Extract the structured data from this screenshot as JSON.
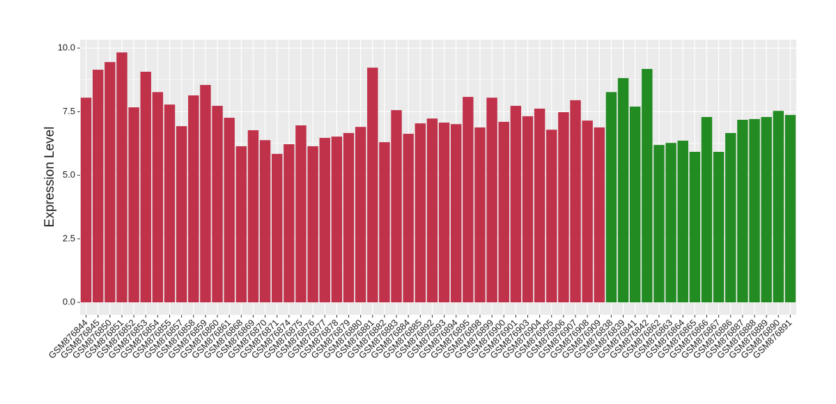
{
  "chart_data": {
    "type": "bar",
    "y_label": "Expression Level",
    "categories": [
      "GSM876844",
      "GSM876845",
      "GSM876850",
      "GSM876851",
      "GSM876852",
      "GSM876853",
      "GSM876854",
      "GSM876855",
      "GSM876857",
      "GSM876858",
      "GSM876859",
      "GSM876860",
      "GSM876861",
      "GSM876868",
      "GSM876869",
      "GSM876870",
      "GSM876871",
      "GSM876874",
      "GSM876875",
      "GSM876876",
      "GSM876877",
      "GSM876878",
      "GSM876879",
      "GSM876880",
      "GSM876881",
      "GSM876882",
      "GSM876883",
      "GSM876884",
      "GSM876885",
      "GSM876892",
      "GSM876893",
      "GSM876894",
      "GSM876895",
      "GSM876898",
      "GSM876899",
      "GSM876900",
      "GSM876901",
      "GSM876903",
      "GSM876904",
      "GSM876905",
      "GSM876906",
      "GSM876907",
      "GSM876908",
      "GSM876909",
      "GSM876838",
      "GSM876839",
      "GSM876841",
      "GSM876842",
      "GSM876862",
      "GSM876863",
      "GSM876864",
      "GSM876865",
      "GSM876866",
      "GSM876867",
      "GSM876886",
      "GSM876887",
      "GSM876888",
      "GSM876889",
      "GSM876890",
      "GSM876891"
    ],
    "values": [
      8.05,
      9.15,
      9.45,
      9.83,
      7.67,
      9.07,
      8.27,
      7.78,
      6.93,
      8.14,
      8.55,
      7.73,
      7.26,
      6.14,
      6.77,
      6.38,
      5.84,
      6.22,
      6.96,
      6.14,
      6.47,
      6.52,
      6.66,
      6.9,
      9.23,
      6.3,
      7.56,
      6.63,
      7.04,
      7.23,
      7.07,
      7.01,
      8.08,
      6.88,
      8.05,
      7.1,
      7.73,
      7.32,
      7.62,
      6.79,
      7.48,
      7.95,
      7.15,
      6.88,
      8.27,
      8.82,
      7.7,
      9.18,
      6.19,
      6.27,
      6.36,
      5.92,
      7.29,
      5.92,
      6.66,
      7.18,
      7.21,
      7.29,
      7.53,
      7.37
    ],
    "colors": [
      "#c0314a",
      "#c0314a",
      "#c0314a",
      "#c0314a",
      "#c0314a",
      "#c0314a",
      "#c0314a",
      "#c0314a",
      "#c0314a",
      "#c0314a",
      "#c0314a",
      "#c0314a",
      "#c0314a",
      "#c0314a",
      "#c0314a",
      "#c0314a",
      "#c0314a",
      "#c0314a",
      "#c0314a",
      "#c0314a",
      "#c0314a",
      "#c0314a",
      "#c0314a",
      "#c0314a",
      "#c0314a",
      "#c0314a",
      "#c0314a",
      "#c0314a",
      "#c0314a",
      "#c0314a",
      "#c0314a",
      "#c0314a",
      "#c0314a",
      "#c0314a",
      "#c0314a",
      "#c0314a",
      "#c0314a",
      "#c0314a",
      "#c0314a",
      "#c0314a",
      "#c0314a",
      "#c0314a",
      "#c0314a",
      "#c0314a",
      "#228b22",
      "#228b22",
      "#228b22",
      "#228b22",
      "#228b22",
      "#228b22",
      "#228b22",
      "#228b22",
      "#228b22",
      "#228b22",
      "#228b22",
      "#228b22",
      "#228b22",
      "#228b22",
      "#228b22",
      "#228b22"
    ],
    "ylim": [
      -0.49,
      10.33
    ],
    "yticks": [
      {
        "value": 0,
        "label": "0.0"
      },
      {
        "value": 2.5,
        "label": "2.5"
      },
      {
        "value": 5,
        "label": "5.0"
      },
      {
        "value": 7.5,
        "label": "7.5"
      },
      {
        "value": 10,
        "label": "10.0"
      }
    ],
    "grid": true
  }
}
